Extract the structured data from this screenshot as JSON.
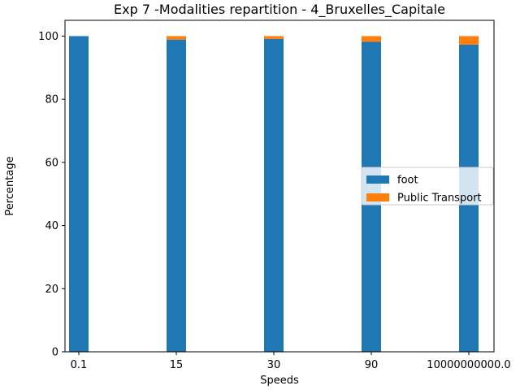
{
  "chart_data": {
    "type": "bar",
    "title": "Exp 7 -Modalities repartition - 4_Bruxelles_Capitale",
    "xlabel": "Speeds",
    "ylabel": "Percentage",
    "categories": [
      "0.1",
      "15",
      "30",
      "90",
      "10000000000.0"
    ],
    "series": [
      {
        "name": "foot",
        "color": "#1f77b4",
        "values": [
          100.0,
          98.9,
          99.1,
          98.2,
          97.3
        ]
      },
      {
        "name": "Public Transport",
        "color": "#ff7f0e",
        "values": [
          0.0,
          1.1,
          0.9,
          1.8,
          2.7
        ]
      }
    ],
    "yticks": [
      0,
      20,
      40,
      60,
      80,
      100
    ],
    "ylim": [
      0,
      105
    ],
    "stacked": true,
    "grid": false,
    "legend_position": "center-right"
  }
}
